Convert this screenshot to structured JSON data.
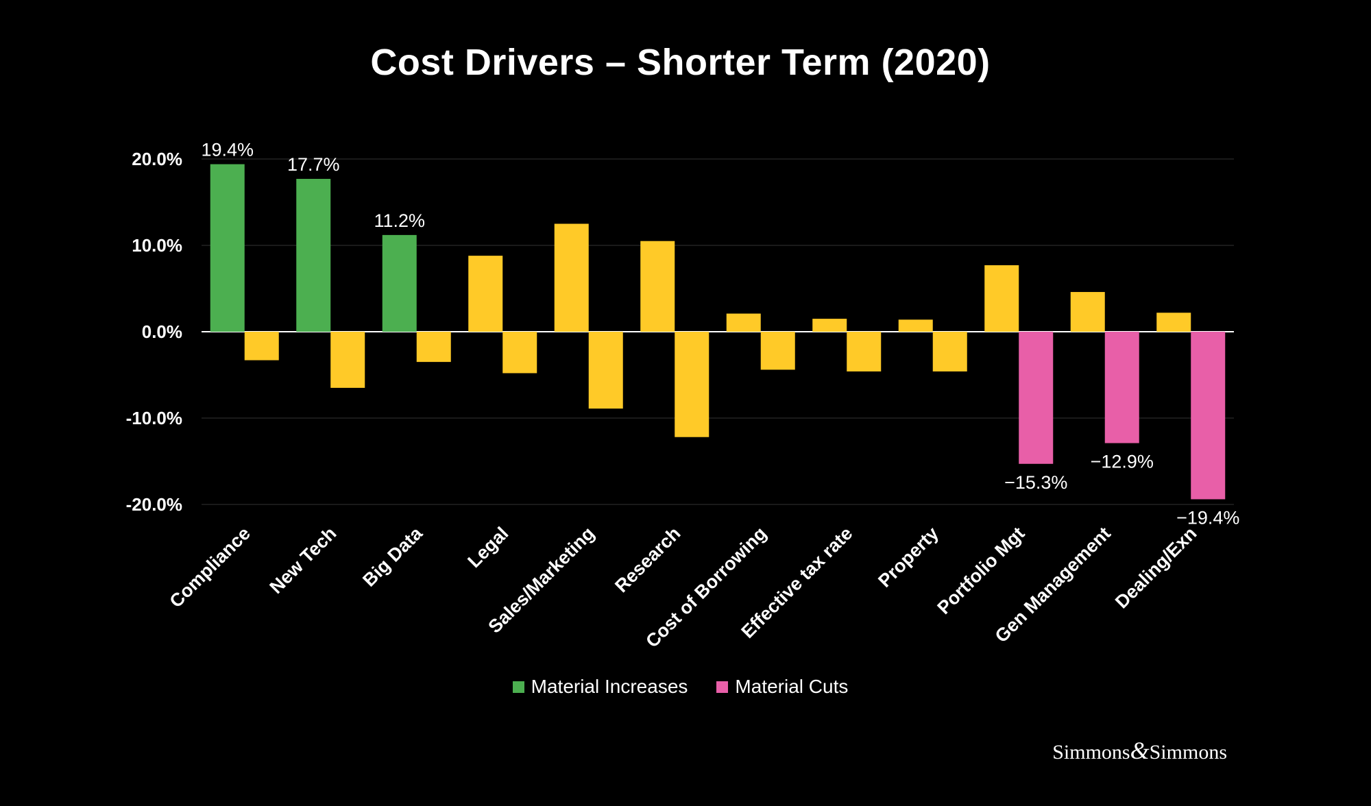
{
  "title": "Cost Drivers – Shorter Term (2020)",
  "legend": [
    {
      "label": "Material Increases",
      "color": "#4caf50"
    },
    {
      "label": "Material Cuts",
      "color": "#e85fa8"
    }
  ],
  "brand": {
    "left": "Simmons",
    "amp": "&",
    "right": "Simmons"
  },
  "colors": {
    "increase": "#4caf50",
    "cut": "#e85fa8",
    "neutral": "#ffca28",
    "background": "#000000",
    "grid": "#333333"
  },
  "chart_data": {
    "type": "bar",
    "title": "Cost Drivers – Shorter Term (2020)",
    "xlabel": "",
    "ylabel": "",
    "ylim": [
      -20,
      20
    ],
    "yticks": [
      "20.0%",
      "10.0%",
      "0.0%",
      "-10.0%",
      "-20.0%"
    ],
    "ytick_values": [
      20,
      10,
      0,
      -10,
      -20
    ],
    "grid": true,
    "legend_position": "bottom",
    "categories": [
      "Compliance",
      "New Tech",
      "Big Data",
      "Legal",
      "Sales/Marketing",
      "Research",
      "Cost of Borrowing",
      "Effective tax rate",
      "Property",
      "Portfolio Mgt",
      "Gen Management",
      "Dealing/Exn"
    ],
    "series": [
      {
        "values": [
          19.4,
          17.7,
          11.2,
          8.8,
          12.5,
          10.5,
          2.1,
          1.5,
          1.4,
          7.7,
          4.6,
          2.2
        ],
        "highlight": [
          "increase",
          "increase",
          "increase",
          "neutral",
          "neutral",
          "neutral",
          "neutral",
          "neutral",
          "neutral",
          "neutral",
          "neutral",
          "neutral"
        ],
        "labels": [
          "19.4%",
          "17.7%",
          "11.2%",
          "",
          "",
          "",
          "",
          "",
          "",
          "",
          "",
          ""
        ]
      },
      {
        "values": [
          -3.3,
          -6.5,
          -3.5,
          -4.8,
          -8.9,
          -12.2,
          -4.4,
          -4.6,
          -4.6,
          -15.3,
          -12.9,
          -19.4
        ],
        "highlight": [
          "neutral",
          "neutral",
          "neutral",
          "neutral",
          "neutral",
          "neutral",
          "neutral",
          "neutral",
          "neutral",
          "cut",
          "cut",
          "cut"
        ],
        "labels": [
          "",
          "",
          "",
          "",
          "",
          "",
          "",
          "",
          "",
          "−15.3%",
          "−12.9%",
          "−19.4%"
        ]
      }
    ]
  }
}
